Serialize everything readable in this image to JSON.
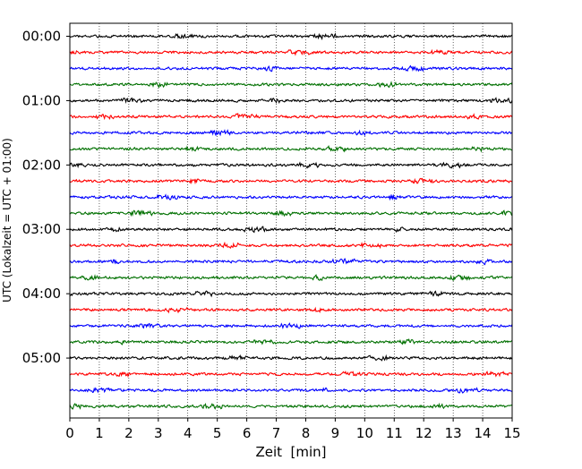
{
  "chart_data": {
    "type": "line",
    "subtype": "helicorder",
    "title": "",
    "xlabel": "Zeit  [min]",
    "ylabel": "UTC (Lokalzeit = UTC + 01:00)",
    "xlim": [
      0,
      15
    ],
    "x_ticks": [
      "0",
      "1",
      "2",
      "3",
      "4",
      "5",
      "6",
      "7",
      "8",
      "9",
      "10",
      "11",
      "12",
      "13",
      "14",
      "15"
    ],
    "y_ticks": [
      "00:00",
      "01:00",
      "02:00",
      "03:00",
      "04:00",
      "05:00"
    ],
    "trace_colors": [
      "#000000",
      "#ff0000",
      "#0000ff",
      "#007000"
    ],
    "trace_count": 24,
    "trace_interval_minutes": 15,
    "grid": "vertical dotted lines at each minute",
    "legend": "none"
  }
}
